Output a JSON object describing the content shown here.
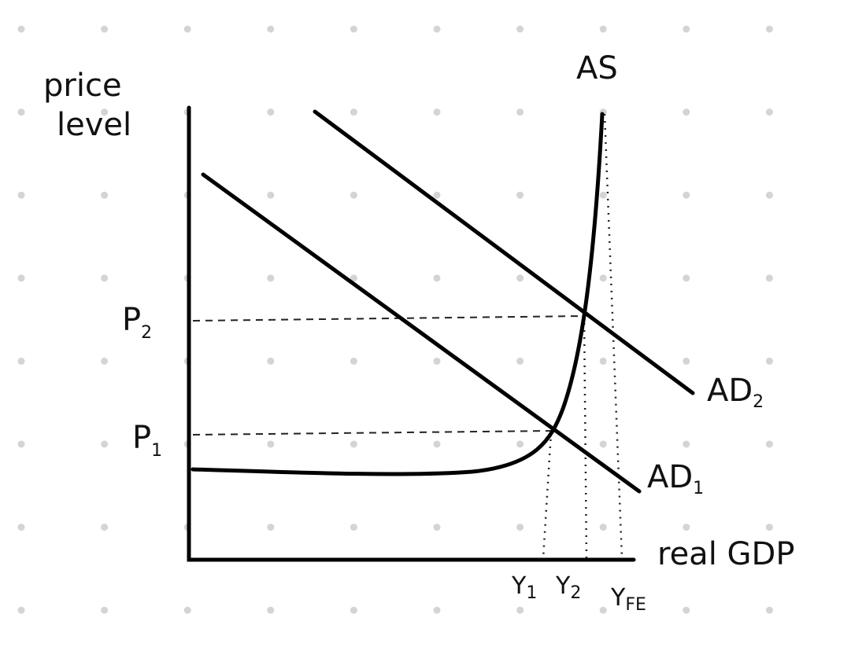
{
  "y_axis_label": [
    "price",
    "level"
  ],
  "x_axis_label": "real GDP",
  "curves": {
    "as": "AS",
    "ad1": {
      "text": "AD",
      "sub": "1"
    },
    "ad2": {
      "text": "AD",
      "sub": "2"
    }
  },
  "price_levels": [
    {
      "text": "P",
      "sub": "1"
    },
    {
      "text": "P",
      "sub": "2"
    }
  ],
  "outputs": [
    {
      "text": "Y",
      "sub": "1"
    },
    {
      "text": "Y",
      "sub": "2"
    },
    {
      "text": "Y",
      "sub": "FE"
    }
  ]
}
